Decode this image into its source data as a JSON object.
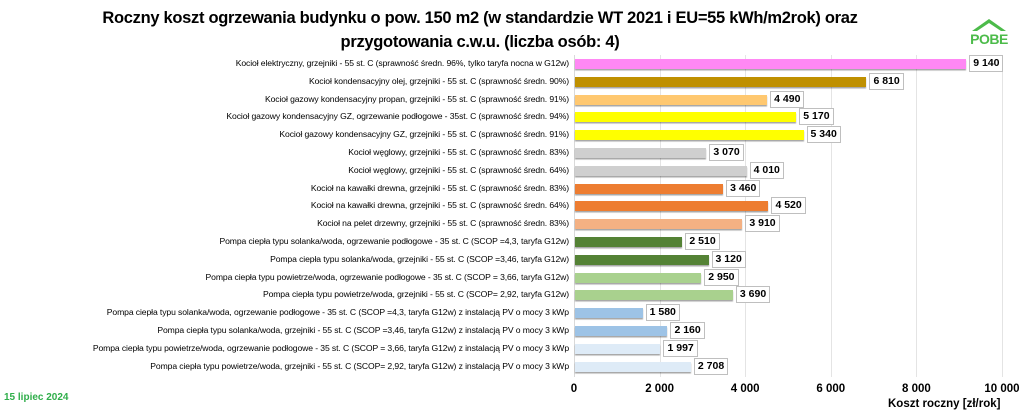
{
  "chart_data": {
    "type": "bar",
    "orientation": "horizontal",
    "title": "Roczny koszt ogrzewania budynku  o pow. 150 m2 (w standardzie WT 2021 i EU=55 kWh/m2rok) oraz przygotowania c.w.u. (liczba osób: 4)",
    "title_lines": [
      "Roczny koszt ogrzewania budynku  o pow. 150 m2 (w standardzie WT 2021 i EU=55 kWh/m2rok) oraz",
      "przygotowania c.w.u. (liczba osób: 4)"
    ],
    "xlabel": "Koszt roczny [zł/rok]",
    "ylabel": "",
    "xlim": [
      0,
      10000
    ],
    "xticks": [
      "0",
      "2 000",
      "4 000",
      "6 000",
      "8 000",
      "10 000"
    ],
    "grid": true,
    "legend": null,
    "categories": [
      "Kocioł  elektryczny,  grzejniki - 55 st. C  (sprawność średn. 96%, tylko taryfa nocna w G12w)",
      "Kocioł  kondensacyjny olej,  grzejniki - 55 st. C  (sprawność średn. 90%)",
      "Kocioł gazowy kondensacyjny propan, grzejniki - 55 st. C  (sprawność średn. 91%)",
      "Kocioł gazowy kondensacyjny GZ, ogrzewanie podłogowe - 35st. C  (sprawność średn. 94%)",
      "Kocioł gazowy kondensacyjny GZ, grzejniki - 55 st. C  (sprawność średn. 91%)",
      "Kocioł węglowy,  grzejniki - 55 st. C  (sprawność średn. 83%)",
      "Kocioł węglowy,  grzejniki - 55 st. C  (sprawność średn. 64%)",
      "Kocioł na kawałki drewna, grzejniki - 55 st. C (sprawność średn. 83%)",
      "Kocioł na kawałki drewna, grzejniki - 55 st. C  (sprawność średn. 64%)",
      "Kocioł na pelet drzewny, grzejniki - 55 st. C (sprawność średn. 83%)",
      "Pompa ciepła typu solanka/woda, ogrzewanie podłogowe - 35 st. C  (SCOP =4,3, taryfa G12w)",
      "Pompa ciepła typu solanka/woda, grzejniki - 55 st. C (SCOP =3,46, taryfa G12w)",
      "Pompa ciepła typu powietrze/woda, ogrzewanie podłogowe - 35 st. C (SCOP = 3,66, taryfa G12w)",
      "Pompa ciepła typu powietrze/woda, grzejniki - 55 st. C (SCOP= 2,92, taryfa G12w)",
      "Pompa ciepła typu solanka/woda, ogrzewanie podłogowe - 35 st. C  (SCOP =4,3, taryfa G12w) z instalacją PV o mocy 3 kWp",
      "Pompa ciepła typu solanka/woda, grzejniki - 55 st. C (SCOP =3,46, taryfa G12w) z instalacją PV o mocy 3 kWp",
      "Pompa ciepła typu powietrze/woda, ogrzewanie podłogowe - 35 st. C (SCOP = 3,66, taryfa G12w) z instalacją PV o mocy 3 kWp",
      "Pompa ciepła typu powietrze/woda, grzejniki - 55 st. C (SCOP= 2,92, taryfa G12w) z instalacją PV o mocy 3 kWp"
    ],
    "values": [
      9140,
      6810,
      4490,
      5170,
      5340,
      3070,
      4010,
      3460,
      4520,
      3910,
      2510,
      3120,
      2950,
      3690,
      1580,
      2160,
      1997,
      2708
    ],
    "value_labels": [
      "9 140",
      "6 810",
      "4 490",
      "5 170",
      "5 340",
      "3 070",
      "4 010",
      "3 460",
      "4 520",
      "3 910",
      "2 510",
      "3 120",
      "2 950",
      "3 690",
      "1 580",
      "2 160",
      "1 997",
      "2 708"
    ],
    "colors": [
      "#ff88f4",
      "#bf9000",
      "#ffc870",
      "#ffff00",
      "#ffff00",
      "#cfcfcf",
      "#cfcfcf",
      "#ed7d31",
      "#ed7d31",
      "#f4b183",
      "#548235",
      "#548235",
      "#a9d18e",
      "#a9d18e",
      "#9dc3e6",
      "#9dc3e6",
      "#deebf7",
      "#deebf7"
    ]
  },
  "logo": {
    "text": "POBE",
    "color": "#4cbb4a"
  },
  "footer": {
    "date": "15 lipiec 2024"
  }
}
